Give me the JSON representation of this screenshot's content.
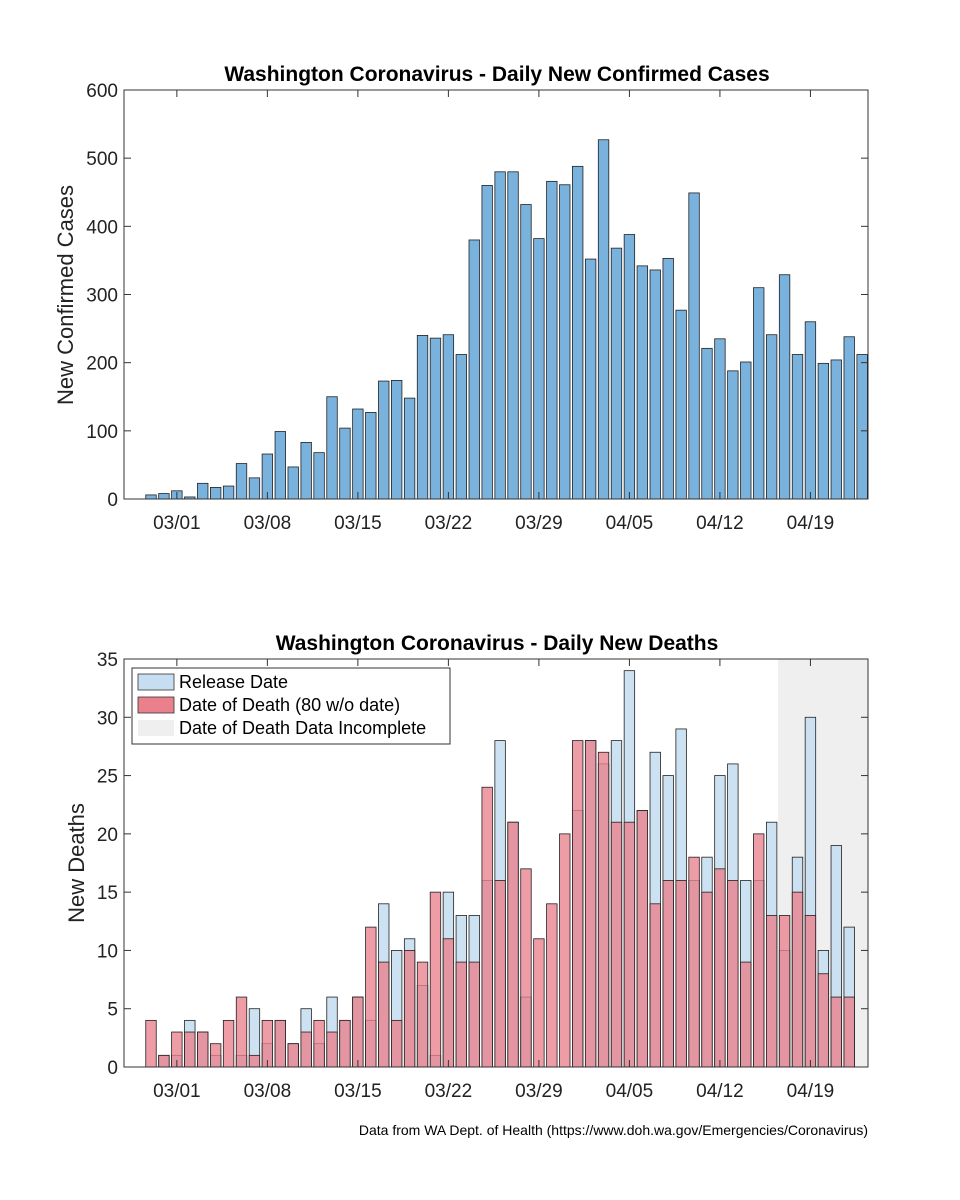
{
  "chart_data": [
    {
      "type": "bar",
      "title": "Washington Coronavirus - Daily New Confirmed Cases",
      "xlabel": "",
      "ylabel": "New Confirmed Cases",
      "ylim": [
        0,
        600
      ],
      "yticks": [
        0,
        100,
        200,
        300,
        400,
        500,
        600
      ],
      "xticks": [
        "03/01",
        "03/08",
        "03/15",
        "03/22",
        "03/29",
        "04/05",
        "04/12",
        "04/19"
      ],
      "x": [
        "02/28",
        "02/29",
        "03/01",
        "03/02",
        "03/03",
        "03/04",
        "03/05",
        "03/06",
        "03/07",
        "03/08",
        "03/09",
        "03/10",
        "03/11",
        "03/12",
        "03/13",
        "03/14",
        "03/15",
        "03/16",
        "03/17",
        "03/18",
        "03/19",
        "03/20",
        "03/21",
        "03/22",
        "03/23",
        "03/24",
        "03/25",
        "03/26",
        "03/27",
        "03/28",
        "03/29",
        "03/30",
        "03/31",
        "04/01",
        "04/02",
        "04/03",
        "04/04",
        "04/05",
        "04/06",
        "04/07",
        "04/08",
        "04/09",
        "04/10",
        "04/11",
        "04/12",
        "04/13",
        "04/14",
        "04/15",
        "04/16",
        "04/17",
        "04/18",
        "04/19",
        "04/20",
        "04/21",
        "04/22",
        "04/23"
      ],
      "series": [
        {
          "values": [
            6,
            8,
            12,
            3,
            23,
            17,
            19,
            52,
            31,
            66,
            99,
            47,
            83,
            68,
            150,
            104,
            132,
            127,
            173,
            174,
            148,
            240,
            236,
            241,
            212,
            380,
            460,
            480,
            480,
            432,
            382,
            466,
            461,
            488,
            352,
            527,
            368,
            388,
            342,
            336,
            353,
            277,
            449,
            221,
            235,
            188,
            201,
            310,
            241,
            329,
            212,
            260,
            199,
            204,
            238,
            212
          ]
        }
      ],
      "grid": false,
      "bar_color": "#7ab2de"
    },
    {
      "type": "bar",
      "title": "Washington Coronavirus - Daily New Deaths",
      "xlabel": "",
      "ylabel": "New Deaths",
      "ylim": [
        0,
        35
      ],
      "yticks": [
        0,
        5,
        10,
        15,
        20,
        25,
        30,
        35
      ],
      "xticks": [
        "03/01",
        "03/08",
        "03/15",
        "03/22",
        "03/29",
        "04/05",
        "04/12",
        "04/19"
      ],
      "x": [
        "02/28",
        "02/29",
        "03/01",
        "03/02",
        "03/03",
        "03/04",
        "03/05",
        "03/06",
        "03/07",
        "03/08",
        "03/09",
        "03/10",
        "03/11",
        "03/12",
        "03/13",
        "03/14",
        "03/15",
        "03/16",
        "03/17",
        "03/18",
        "03/19",
        "03/20",
        "03/21",
        "03/22",
        "03/23",
        "03/24",
        "03/25",
        "03/26",
        "03/27",
        "03/28",
        "03/29",
        "03/30",
        "03/31",
        "04/01",
        "04/02",
        "04/03",
        "04/04",
        "04/05",
        "04/06",
        "04/07",
        "04/08",
        "04/09",
        "04/10",
        "04/11",
        "04/12",
        "04/13",
        "04/14",
        "04/15",
        "04/16",
        "04/17",
        "04/18",
        "04/19",
        "04/20",
        "04/21",
        "04/22",
        "04/23"
      ],
      "series": [
        {
          "name": "Release Date",
          "color": "#c6def0",
          "values": [
            0,
            1,
            1,
            4,
            3,
            1,
            0,
            1,
            5,
            2,
            4,
            2,
            5,
            2,
            6,
            4,
            6,
            4,
            14,
            10,
            11,
            7,
            1,
            15,
            13,
            13,
            16,
            28,
            21,
            6,
            0,
            0,
            0,
            22,
            28,
            26,
            28,
            34,
            22,
            27,
            25,
            29,
            16,
            18,
            25,
            26,
            16,
            16,
            21,
            10,
            18,
            30,
            10,
            19,
            12,
            0
          ]
        },
        {
          "name": "Date of Death (80 w/o date)",
          "color": "#e9808c",
          "values": [
            4,
            1,
            3,
            3,
            3,
            2,
            4,
            6,
            1,
            4,
            4,
            2,
            3,
            4,
            3,
            4,
            6,
            12,
            9,
            4,
            10,
            9,
            15,
            11,
            9,
            9,
            24,
            16,
            21,
            17,
            11,
            14,
            20,
            28,
            28,
            27,
            21,
            21,
            22,
            14,
            16,
            16,
            18,
            15,
            17,
            16,
            9,
            20,
            13,
            13,
            15,
            13,
            8,
            6,
            6,
            0
          ]
        }
      ],
      "legend": {
        "position": "top-left",
        "entries": [
          "Release Date",
          "Date of Death (80 w/o date)",
          "Date of Death Data Incomplete"
        ]
      },
      "shaded_region": {
        "label": "Date of Death Data Incomplete",
        "from": "04/17",
        "to": "04/23",
        "color": "#efefef"
      },
      "grid": false
    }
  ],
  "footer": {
    "source": "Data from WA Dept. of Health (https://www.doh.wa.gov/Emergencies/Coronavirus)"
  }
}
